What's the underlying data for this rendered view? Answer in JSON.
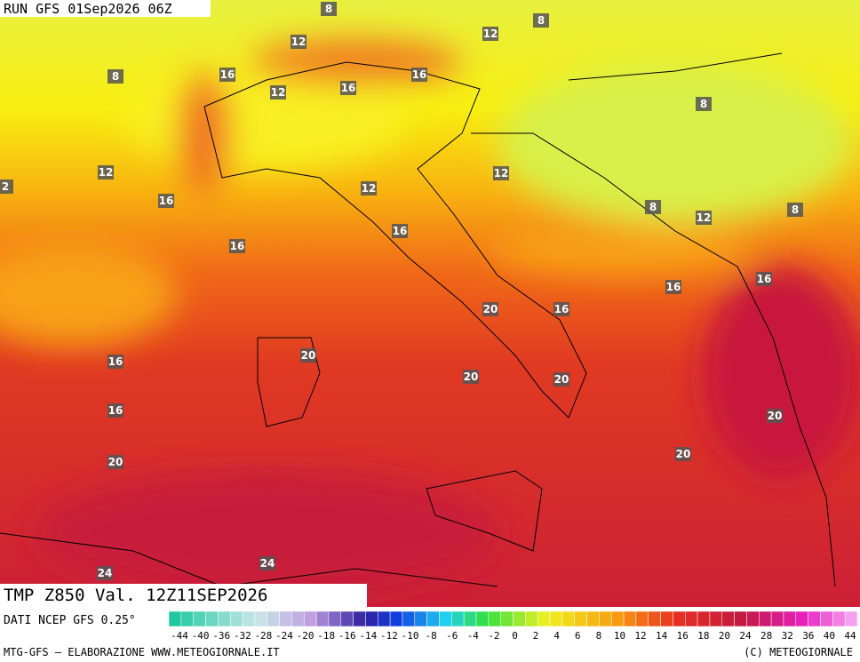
{
  "header": {
    "run": "RUN GFS 01Sep2026 06Z",
    "field": "TMP Z850 Val. 12Z11SEP2026",
    "source": "DATI NCEP GFS 0.25°"
  },
  "footer": {
    "left": "MTG-GFS – ELABORAZIONE WWW.METEOGIORNALE.IT",
    "right": "(C) METEOGIORNALE"
  },
  "legend": {
    "labels": [
      "-44",
      "-40",
      "-36",
      "-32",
      "-28",
      "-24",
      "-20",
      "-18",
      "-16",
      "-14",
      "-12",
      "-10",
      "-8",
      "-6",
      "-4",
      "-2",
      "0",
      "2",
      "4",
      "6",
      "8",
      "10",
      "12",
      "14",
      "16",
      "18",
      "20",
      "24",
      "28",
      "32",
      "36",
      "40",
      "44"
    ]
  },
  "contour_labels": [
    "8",
    "8",
    "8",
    "12",
    "12",
    "16",
    "12",
    "16",
    "16",
    "8",
    "12",
    "16",
    "12",
    "2",
    "12",
    "16",
    "8",
    "12",
    "8",
    "16",
    "16",
    "16",
    "16",
    "20",
    "16",
    "20",
    "20",
    "20",
    "16",
    "20",
    "20",
    "20",
    "24",
    "24"
  ]
}
